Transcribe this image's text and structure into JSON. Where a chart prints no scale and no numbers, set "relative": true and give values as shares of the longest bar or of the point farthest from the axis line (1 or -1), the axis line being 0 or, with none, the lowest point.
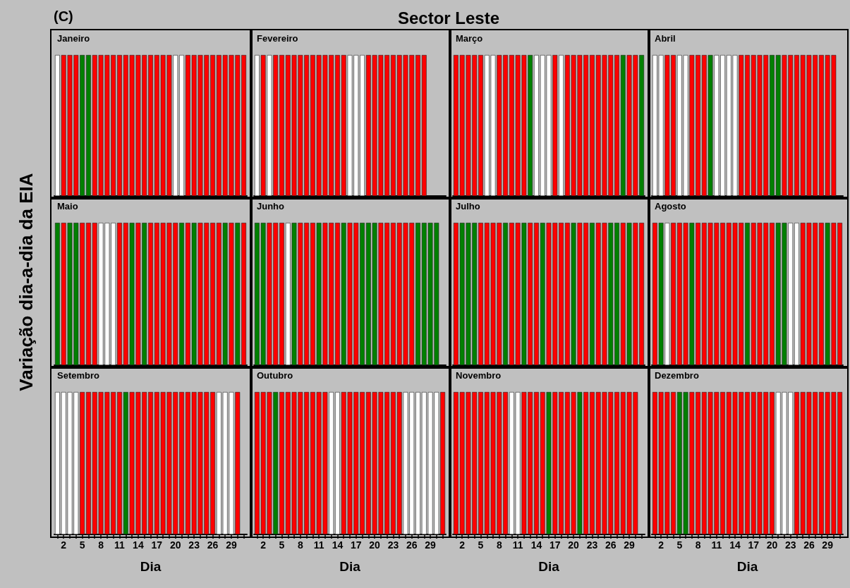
{
  "chart_data": [
    {
      "type": "bar",
      "relative": true,
      "tick_labels": false,
      "title": "Janeiro",
      "annotations": [
        "(C)",
        "Sector Leste"
      ],
      "categories": [
        null,
        "2",
        null,
        null,
        "5",
        null,
        null,
        "8",
        null,
        null,
        "11",
        null,
        null,
        "14",
        null,
        null,
        "17",
        null,
        null,
        "20",
        null,
        null,
        "23",
        null,
        null,
        "26",
        null,
        null,
        "29",
        null,
        null
      ],
      "values": [
        1,
        1,
        1,
        1,
        1,
        1,
        1,
        1,
        1,
        1,
        1,
        1,
        1,
        1,
        1,
        1,
        1,
        1,
        1,
        1,
        1,
        1,
        1,
        1,
        1,
        1,
        1,
        1,
        1,
        1,
        1
      ],
      "colors": [
        "#ffffff",
        "#ff0000",
        "#ff0000",
        "#ff0000",
        "#008000",
        "#008000",
        "#ff0000",
        "#ff0000",
        "#ff0000",
        "#ff0000",
        "#ff0000",
        "#ff0000",
        "#ff0000",
        "#ff0000",
        "#ff0000",
        "#ff0000",
        "#ff0000",
        "#ff0000",
        "#ff0000",
        "#ffffff",
        "#ffffff",
        "#ff0000",
        "#ff0000",
        "#ff0000",
        "#ff0000",
        "#ff0000",
        "#ff0000",
        "#ff0000",
        "#ff0000",
        "#ff0000",
        "#ff0000"
      ]
    },
    {
      "type": "bar",
      "relative": true,
      "tick_labels": false,
      "title": "Fevereiro",
      "categories": [
        null,
        "2",
        null,
        null,
        "5",
        null,
        null,
        "8",
        null,
        null,
        "11",
        null,
        null,
        "14",
        null,
        null,
        "17",
        null,
        null,
        "20",
        null,
        null,
        "23",
        null,
        null,
        "26",
        null,
        null,
        "29",
        null,
        null
      ],
      "values": [
        1,
        1,
        1,
        1,
        1,
        1,
        1,
        1,
        1,
        1,
        1,
        1,
        1,
        1,
        1,
        1,
        1,
        1,
        1,
        1,
        1,
        1,
        1,
        1,
        1,
        1,
        1,
        1,
        null,
        null,
        null
      ],
      "colors": [
        "#ffffff",
        "#ff0000",
        "#ffffff",
        "#ff0000",
        "#ff0000",
        "#ff0000",
        "#ff0000",
        "#ff0000",
        "#ff0000",
        "#ff0000",
        "#ff0000",
        "#ff0000",
        "#ff0000",
        "#ff0000",
        "#ff0000",
        "#ffffff",
        "#ffffff",
        "#ffffff",
        "#ff0000",
        "#ff0000",
        "#ff0000",
        "#ff0000",
        "#ff0000",
        "#ff0000",
        "#ff0000",
        "#ff0000",
        "#ff0000",
        "#ff0000",
        null,
        null,
        null
      ]
    },
    {
      "type": "bar",
      "relative": true,
      "tick_labels": false,
      "title": "Março",
      "categories": [
        null,
        "2",
        null,
        null,
        "5",
        null,
        null,
        "8",
        null,
        null,
        "11",
        null,
        null,
        "14",
        null,
        null,
        "17",
        null,
        null,
        "20",
        null,
        null,
        "23",
        null,
        null,
        "26",
        null,
        null,
        "29",
        null,
        null
      ],
      "values": [
        1,
        1,
        1,
        1,
        1,
        1,
        1,
        1,
        1,
        1,
        1,
        1,
        1,
        1,
        1,
        1,
        1,
        1,
        1,
        1,
        1,
        1,
        1,
        1,
        1,
        1,
        1,
        1,
        1,
        1,
        1
      ],
      "colors": [
        "#ff0000",
        "#ff0000",
        "#ff0000",
        "#ff0000",
        "#ff0000",
        "#ffffff",
        "#ffffff",
        "#ff0000",
        "#ff0000",
        "#ff0000",
        "#ff0000",
        "#ff0000",
        "#008000",
        "#ffffff",
        "#ffffff",
        "#ffffff",
        "#ff0000",
        "#ffffff",
        "#ff0000",
        "#ff0000",
        "#ff0000",
        "#ff0000",
        "#ff0000",
        "#ff0000",
        "#ff0000",
        "#ff0000",
        "#ff0000",
        "#008000",
        "#ff0000",
        "#ff0000",
        "#008000"
      ]
    },
    {
      "type": "bar",
      "relative": true,
      "tick_labels": false,
      "title": "Abril",
      "categories": [
        null,
        "2",
        null,
        null,
        "5",
        null,
        null,
        "8",
        null,
        null,
        "11",
        null,
        null,
        "14",
        null,
        null,
        "17",
        null,
        null,
        "20",
        null,
        null,
        "23",
        null,
        null,
        "26",
        null,
        null,
        "29",
        null,
        null
      ],
      "values": [
        1,
        1,
        1,
        1,
        1,
        1,
        1,
        1,
        1,
        1,
        1,
        1,
        1,
        1,
        1,
        1,
        1,
        1,
        1,
        1,
        1,
        1,
        1,
        1,
        1,
        1,
        1,
        1,
        1,
        1,
        null
      ],
      "colors": [
        "#ffffff",
        "#ffffff",
        "#ff0000",
        "#ff0000",
        "#ffffff",
        "#ffffff",
        "#ff0000",
        "#ff0000",
        "#ff0000",
        "#008000",
        "#ffffff",
        "#ffffff",
        "#ffffff",
        "#ffffff",
        "#ff0000",
        "#ff0000",
        "#ff0000",
        "#ff0000",
        "#ff0000",
        "#008000",
        "#008000",
        "#ff0000",
        "#ff0000",
        "#ff0000",
        "#ff0000",
        "#ff0000",
        "#ff0000",
        "#ff0000",
        "#ff0000",
        "#ff0000",
        null
      ]
    },
    {
      "type": "bar",
      "relative": true,
      "tick_labels": false,
      "title": "Maio",
      "ylabel": "Variação dia-a-dia da EIA",
      "categories": [
        null,
        "2",
        null,
        null,
        "5",
        null,
        null,
        "8",
        null,
        null,
        "11",
        null,
        null,
        "14",
        null,
        null,
        "17",
        null,
        null,
        "20",
        null,
        null,
        "23",
        null,
        null,
        "26",
        null,
        null,
        "29",
        null,
        null
      ],
      "values": [
        1,
        1,
        1,
        1,
        1,
        1,
        1,
        1,
        1,
        1,
        1,
        1,
        1,
        1,
        1,
        1,
        1,
        1,
        1,
        1,
        1,
        1,
        1,
        1,
        1,
        1,
        1,
        1,
        1,
        1,
        1
      ],
      "colors": [
        "#008000",
        "#ff0000",
        "#008000",
        "#008000",
        "#ff0000",
        "#ff0000",
        "#ff0000",
        "#ffffff",
        "#ffffff",
        "#ffffff",
        "#ff0000",
        "#ff0000",
        "#008000",
        "#ff0000",
        "#008000",
        "#ff0000",
        "#ff0000",
        "#ff0000",
        "#ff0000",
        "#ff0000",
        "#008000",
        "#ff0000",
        "#008000",
        "#ff0000",
        "#ff0000",
        "#ff0000",
        "#ff0000",
        "#008000",
        "#ff0000",
        "#008000",
        "#ff0000"
      ]
    },
    {
      "type": "bar",
      "relative": true,
      "tick_labels": false,
      "title": "Junho",
      "categories": [
        null,
        "2",
        null,
        null,
        "5",
        null,
        null,
        "8",
        null,
        null,
        "11",
        null,
        null,
        "14",
        null,
        null,
        "17",
        null,
        null,
        "20",
        null,
        null,
        "23",
        null,
        null,
        "26",
        null,
        null,
        "29",
        null,
        null
      ],
      "values": [
        1,
        1,
        1,
        1,
        1,
        1,
        1,
        1,
        1,
        1,
        1,
        1,
        1,
        1,
        1,
        1,
        1,
        1,
        1,
        1,
        1,
        1,
        1,
        1,
        1,
        1,
        1,
        1,
        1,
        1,
        null
      ],
      "colors": [
        "#008000",
        "#008000",
        "#ff0000",
        "#ff0000",
        "#ff0000",
        "#ffffff",
        "#008000",
        "#ff0000",
        "#ff0000",
        "#ff0000",
        "#008000",
        "#ff0000",
        "#ff0000",
        "#ff0000",
        "#008000",
        "#ff0000",
        "#ff0000",
        "#008000",
        "#008000",
        "#008000",
        "#ff0000",
        "#ff0000",
        "#ff0000",
        "#ff0000",
        "#ff0000",
        "#ff0000",
        "#008000",
        "#008000",
        "#008000",
        "#008000",
        null
      ]
    },
    {
      "type": "bar",
      "relative": true,
      "tick_labels": false,
      "title": "Julho",
      "categories": [
        null,
        "2",
        null,
        null,
        "5",
        null,
        null,
        "8",
        null,
        null,
        "11",
        null,
        null,
        "14",
        null,
        null,
        "17",
        null,
        null,
        "20",
        null,
        null,
        "23",
        null,
        null,
        "26",
        null,
        null,
        "29",
        null,
        null
      ],
      "values": [
        1,
        1,
        1,
        1,
        1,
        1,
        1,
        1,
        1,
        1,
        1,
        1,
        1,
        1,
        1,
        1,
        1,
        1,
        1,
        1,
        1,
        1,
        1,
        1,
        1,
        1,
        1,
        1,
        1,
        1,
        1
      ],
      "colors": [
        "#ff0000",
        "#008000",
        "#008000",
        "#008000",
        "#ff0000",
        "#ff0000",
        "#ff0000",
        "#ff0000",
        "#008000",
        "#ff0000",
        "#ff0000",
        "#008000",
        "#ff0000",
        "#ff0000",
        "#008000",
        "#ff0000",
        "#ff0000",
        "#ff0000",
        "#ff0000",
        "#008000",
        "#ff0000",
        "#ff0000",
        "#008000",
        "#ff0000",
        "#ff0000",
        "#008000",
        "#008000",
        "#ff0000",
        "#008000",
        "#ff0000",
        "#ff0000"
      ]
    },
    {
      "type": "bar",
      "relative": true,
      "tick_labels": false,
      "title": "Agosto",
      "categories": [
        null,
        "2",
        null,
        null,
        "5",
        null,
        null,
        "8",
        null,
        null,
        "11",
        null,
        null,
        "14",
        null,
        null,
        "17",
        null,
        null,
        "20",
        null,
        null,
        "23",
        null,
        null,
        "26",
        null,
        null,
        "29",
        null,
        null
      ],
      "values": [
        1,
        1,
        1,
        1,
        1,
        1,
        1,
        1,
        1,
        1,
        1,
        1,
        1,
        1,
        1,
        1,
        1,
        1,
        1,
        1,
        1,
        1,
        1,
        1,
        1,
        1,
        1,
        1,
        1,
        1,
        1
      ],
      "colors": [
        "#ff0000",
        "#008000",
        "#ffffff",
        "#ff0000",
        "#ff0000",
        "#ff0000",
        "#008000",
        "#ff0000",
        "#ff0000",
        "#ff0000",
        "#ff0000",
        "#ff0000",
        "#ff0000",
        "#ff0000",
        "#ff0000",
        "#008000",
        "#ff0000",
        "#ff0000",
        "#ff0000",
        "#ff0000",
        "#008000",
        "#008000",
        "#ffffff",
        "#ffffff",
        "#ff0000",
        "#ff0000",
        "#ff0000",
        "#ff0000",
        "#008000",
        "#ff0000",
        "#ff0000"
      ]
    },
    {
      "type": "bar",
      "relative": true,
      "tick_labels": "x",
      "title": "Setembro",
      "xlabel": "Dia",
      "categories": [
        null,
        "2",
        null,
        null,
        "5",
        null,
        null,
        "8",
        null,
        null,
        "11",
        null,
        null,
        "14",
        null,
        null,
        "17",
        null,
        null,
        "20",
        null,
        null,
        "23",
        null,
        null,
        "26",
        null,
        null,
        "29",
        null,
        null
      ],
      "values": [
        1,
        1,
        1,
        1,
        1,
        1,
        1,
        1,
        1,
        1,
        1,
        1,
        1,
        1,
        1,
        1,
        1,
        1,
        1,
        1,
        1,
        1,
        1,
        1,
        1,
        1,
        1,
        1,
        1,
        1,
        null
      ],
      "colors": [
        "#ffffff",
        "#ffffff",
        "#ffffff",
        "#ffffff",
        "#ff0000",
        "#ff0000",
        "#ff0000",
        "#ff0000",
        "#ff0000",
        "#ff0000",
        "#ff0000",
        "#008000",
        "#ff0000",
        "#ff0000",
        "#ff0000",
        "#ff0000",
        "#ff0000",
        "#ff0000",
        "#ff0000",
        "#ff0000",
        "#ff0000",
        "#ff0000",
        "#ff0000",
        "#ff0000",
        "#ff0000",
        "#ff0000",
        "#ffffff",
        "#ffffff",
        "#ffffff",
        "#ff0000",
        null
      ]
    },
    {
      "type": "bar",
      "relative": true,
      "tick_labels": "x",
      "title": "Outubro",
      "xlabel": "Dia",
      "categories": [
        null,
        "2",
        null,
        null,
        "5",
        null,
        null,
        "8",
        null,
        null,
        "11",
        null,
        null,
        "14",
        null,
        null,
        "17",
        null,
        null,
        "20",
        null,
        null,
        "23",
        null,
        null,
        "26",
        null,
        null,
        "29",
        null,
        null
      ],
      "values": [
        1,
        1,
        1,
        1,
        1,
        1,
        1,
        1,
        1,
        1,
        1,
        1,
        1,
        1,
        1,
        1,
        1,
        1,
        1,
        1,
        1,
        1,
        1,
        1,
        1,
        1,
        1,
        1,
        1,
        1,
        1
      ],
      "colors": [
        "#ff0000",
        "#ff0000",
        "#ff0000",
        "#008000",
        "#ff0000",
        "#ff0000",
        "#ff0000",
        "#ff0000",
        "#ff0000",
        "#ff0000",
        "#ff0000",
        "#ff0000",
        "#ffffff",
        "#ffffff",
        "#ff0000",
        "#ff0000",
        "#ff0000",
        "#ff0000",
        "#ff0000",
        "#ff0000",
        "#ff0000",
        "#ff0000",
        "#ff0000",
        "#ff0000",
        "#ffffff",
        "#ffffff",
        "#ffffff",
        "#ffffff",
        "#ffffff",
        "#ffffff",
        "#ff0000"
      ]
    },
    {
      "type": "bar",
      "relative": true,
      "tick_labels": "x",
      "title": "Novembro",
      "xlabel": "Dia",
      "categories": [
        null,
        "2",
        null,
        null,
        "5",
        null,
        null,
        "8",
        null,
        null,
        "11",
        null,
        null,
        "14",
        null,
        null,
        "17",
        null,
        null,
        "20",
        null,
        null,
        "23",
        null,
        null,
        "26",
        null,
        null,
        "29",
        null,
        null
      ],
      "values": [
        1,
        1,
        1,
        1,
        1,
        1,
        1,
        1,
        1,
        1,
        1,
        1,
        1,
        1,
        1,
        1,
        1,
        1,
        1,
        1,
        1,
        1,
        1,
        1,
        1,
        1,
        1,
        1,
        1,
        1,
        null
      ],
      "colors": [
        "#ff0000",
        "#ff0000",
        "#ff0000",
        "#ff0000",
        "#ff0000",
        "#ff0000",
        "#ff0000",
        "#ff0000",
        "#ff0000",
        "#ffffff",
        "#ffffff",
        "#ff0000",
        "#ff0000",
        "#ff0000",
        "#ff0000",
        "#008000",
        "#ff0000",
        "#ff0000",
        "#ff0000",
        "#ff0000",
        "#008000",
        "#ff0000",
        "#ff0000",
        "#ff0000",
        "#ff0000",
        "#ff0000",
        "#ff0000",
        "#ff0000",
        "#ff0000",
        "#ff0000",
        null
      ]
    },
    {
      "type": "bar",
      "relative": true,
      "tick_labels": "x",
      "title": "Dezembro",
      "xlabel": "Dia",
      "categories": [
        null,
        "2",
        null,
        null,
        "5",
        null,
        null,
        "8",
        null,
        null,
        "11",
        null,
        null,
        "14",
        null,
        null,
        "17",
        null,
        null,
        "20",
        null,
        null,
        "23",
        null,
        null,
        "26",
        null,
        null,
        "29",
        null,
        null
      ],
      "values": [
        1,
        1,
        1,
        1,
        1,
        1,
        1,
        1,
        1,
        1,
        1,
        1,
        1,
        1,
        1,
        1,
        1,
        1,
        1,
        1,
        1,
        1,
        1,
        1,
        1,
        1,
        1,
        1,
        1,
        1,
        1
      ],
      "colors": [
        "#ff0000",
        "#ff0000",
        "#ff0000",
        "#ff0000",
        "#008000",
        "#008000",
        "#ff0000",
        "#ff0000",
        "#ff0000",
        "#ff0000",
        "#ff0000",
        "#ff0000",
        "#ff0000",
        "#ff0000",
        "#ff0000",
        "#ff0000",
        "#ff0000",
        "#ff0000",
        "#ff0000",
        "#ff0000",
        "#ffffff",
        "#ffffff",
        "#ffffff",
        "#ff0000",
        "#ff0000",
        "#ff0000",
        "#ff0000",
        "#ff0000",
        "#ff0000",
        "#ff0000",
        "#ff0000"
      ]
    }
  ]
}
